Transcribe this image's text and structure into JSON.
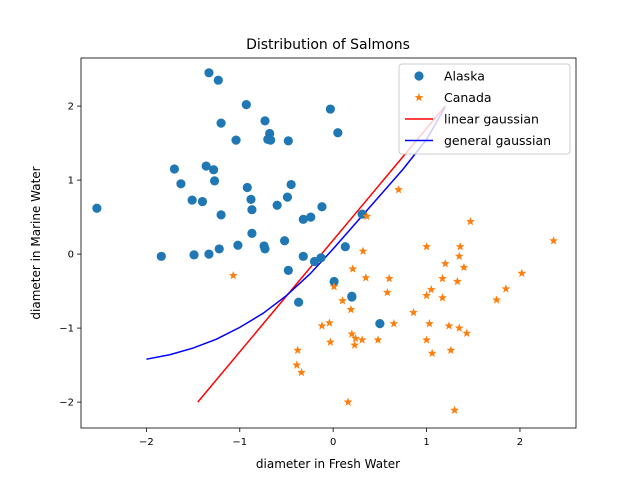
{
  "chart_data": {
    "type": "scatter",
    "title": "Distribution of Salmons",
    "xlabel": "diameter in Fresh Water",
    "ylabel": "diameter in Marine Water",
    "xlim": [
      -2.7,
      2.6
    ],
    "ylim": [
      -2.35,
      2.65
    ],
    "xticks": [
      -2,
      -1,
      0,
      1,
      2
    ],
    "yticks": [
      -2,
      -1,
      0,
      1,
      2
    ],
    "xtick_labels": [
      "−2",
      "−1",
      "0",
      "1",
      "2"
    ],
    "ytick_labels": [
      "−2",
      "−1",
      "0",
      "1",
      "2"
    ],
    "grid": false,
    "legend": {
      "position": "top-right"
    },
    "series": [
      {
        "name": "Alaska",
        "kind": "scatter",
        "marker": "circle",
        "color": "#1f77b4",
        "points": [
          [
            -1.33,
            2.45
          ],
          [
            -1.23,
            2.35
          ],
          [
            -0.93,
            2.02
          ],
          [
            -0.03,
            1.96
          ],
          [
            -0.73,
            1.8
          ],
          [
            -1.2,
            1.77
          ],
          [
            0.05,
            1.64
          ],
          [
            -0.68,
            1.63
          ],
          [
            -1.04,
            1.54
          ],
          [
            -0.7,
            1.55
          ],
          [
            -0.67,
            1.54
          ],
          [
            -0.48,
            1.53
          ],
          [
            -1.36,
            1.19
          ],
          [
            -1.7,
            1.15
          ],
          [
            -1.28,
            1.14
          ],
          [
            -1.63,
            0.95
          ],
          [
            -1.27,
            0.99
          ],
          [
            -0.92,
            0.9
          ],
          [
            -0.45,
            0.94
          ],
          [
            -1.51,
            0.73
          ],
          [
            -1.4,
            0.71
          ],
          [
            -0.88,
            0.74
          ],
          [
            -0.49,
            0.77
          ],
          [
            -2.53,
            0.62
          ],
          [
            -0.6,
            0.66
          ],
          [
            -0.87,
            0.6
          ],
          [
            -0.12,
            0.64
          ],
          [
            -1.2,
            0.53
          ],
          [
            0.31,
            0.54
          ],
          [
            -0.32,
            0.47
          ],
          [
            -0.24,
            0.5
          ],
          [
            -0.87,
            0.28
          ],
          [
            -0.52,
            0.18
          ],
          [
            -0.74,
            0.11
          ],
          [
            -1.02,
            0.12
          ],
          [
            -0.73,
            0.07
          ],
          [
            -1.22,
            0.07
          ],
          [
            0.13,
            0.1
          ],
          [
            -1.84,
            -0.03
          ],
          [
            -1.49,
            -0.01
          ],
          [
            -1.33,
            0.0
          ],
          [
            -0.32,
            -0.03
          ],
          [
            -0.13,
            -0.05
          ],
          [
            -0.2,
            -0.1
          ],
          [
            -0.48,
            -0.22
          ],
          [
            0.01,
            -0.37
          ],
          [
            0.2,
            -0.58
          ],
          [
            0.2,
            -0.57
          ],
          [
            -0.37,
            -0.65
          ],
          [
            0.5,
            -0.94
          ]
        ]
      },
      {
        "name": "Canada",
        "kind": "scatter",
        "marker": "star",
        "color": "#ff7f0e",
        "points": [
          [
            1.47,
            0.44
          ],
          [
            2.36,
            0.18
          ],
          [
            0.36,
            0.51
          ],
          [
            0.7,
            0.87
          ],
          [
            1.0,
            0.1
          ],
          [
            1.36,
            0.1
          ],
          [
            0.32,
            0.04
          ],
          [
            1.35,
            -0.03
          ],
          [
            1.2,
            -0.13
          ],
          [
            1.4,
            -0.18
          ],
          [
            2.02,
            -0.26
          ],
          [
            0.21,
            -0.2
          ],
          [
            -1.07,
            -0.29
          ],
          [
            0.35,
            -0.32
          ],
          [
            0.6,
            -0.33
          ],
          [
            1.17,
            -0.33
          ],
          [
            1.33,
            -0.37
          ],
          [
            0.01,
            -0.44
          ],
          [
            0.58,
            -0.52
          ],
          [
            1.05,
            -0.48
          ],
          [
            1.85,
            -0.47
          ],
          [
            1.0,
            -0.56
          ],
          [
            1.17,
            -0.59
          ],
          [
            1.75,
            -0.62
          ],
          [
            0.1,
            -0.63
          ],
          [
            0.19,
            -0.75
          ],
          [
            0.86,
            -0.79
          ],
          [
            -0.12,
            -0.97
          ],
          [
            -0.04,
            -0.93
          ],
          [
            0.65,
            -0.94
          ],
          [
            1.03,
            -0.94
          ],
          [
            1.24,
            -0.97
          ],
          [
            1.35,
            -1.0
          ],
          [
            1.43,
            -1.07
          ],
          [
            0.2,
            -1.08
          ],
          [
            0.31,
            -1.16
          ],
          [
            0.48,
            -1.16
          ],
          [
            0.24,
            -1.14
          ],
          [
            1.0,
            -1.16
          ],
          [
            -0.03,
            -1.19
          ],
          [
            0.23,
            -1.23
          ],
          [
            1.06,
            -1.34
          ],
          [
            1.26,
            -1.3
          ],
          [
            -0.38,
            -1.3
          ],
          [
            -0.39,
            -1.5
          ],
          [
            -0.34,
            -1.6
          ],
          [
            0.16,
            -2.0
          ],
          [
            1.3,
            -2.11
          ]
        ]
      },
      {
        "name": "linear gaussian",
        "kind": "line",
        "color": "#ff0000",
        "points": [
          [
            -1.45,
            -2.0
          ],
          [
            1.2,
            2.0
          ]
        ]
      },
      {
        "name": "general gaussian",
        "kind": "line",
        "color": "#0000ff",
        "points": [
          [
            -2.0,
            -1.42
          ],
          [
            -1.75,
            -1.36
          ],
          [
            -1.5,
            -1.27
          ],
          [
            -1.25,
            -1.15
          ],
          [
            -1.0,
            -0.99
          ],
          [
            -0.75,
            -0.8
          ],
          [
            -0.5,
            -0.56
          ],
          [
            -0.25,
            -0.27
          ],
          [
            0.0,
            0.07
          ],
          [
            0.25,
            0.43
          ],
          [
            0.5,
            0.79
          ],
          [
            0.75,
            1.15
          ],
          [
            1.0,
            1.55
          ],
          [
            1.2,
            1.99
          ]
        ]
      }
    ]
  }
}
